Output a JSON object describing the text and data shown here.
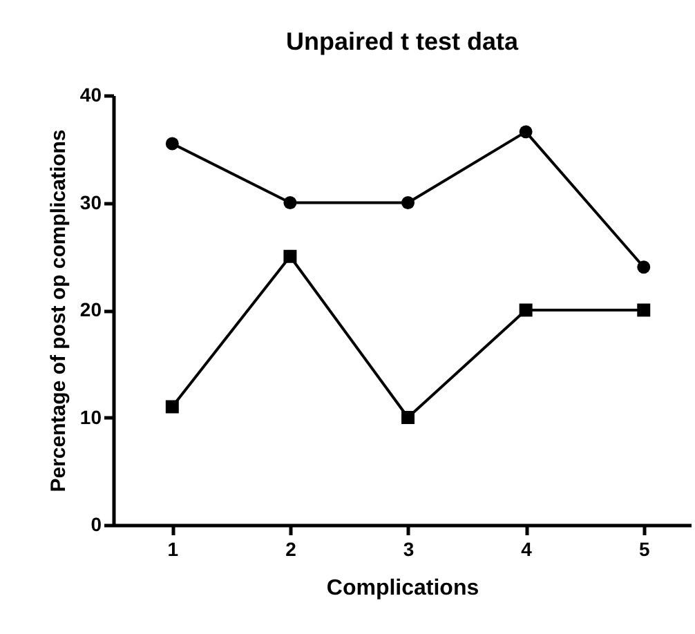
{
  "chart_data": {
    "type": "line",
    "title": "Unpaired t test data",
    "xlabel": "Complications",
    "ylabel": "Percentage of post op complications",
    "x": [
      1,
      2,
      3,
      4,
      5
    ],
    "series": [
      {
        "color": "#000000",
        "marker": "circle",
        "values": [
          35.5,
          30,
          30,
          36.6,
          24
        ]
      },
      {
        "color": "#000000",
        "marker": "square",
        "values": [
          11,
          25,
          10,
          20,
          20
        ]
      }
    ],
    "xlim": [
      0.5,
      5.4
    ],
    "xticks": [
      1,
      2,
      3,
      4,
      5
    ],
    "ylim": [
      0,
      40
    ],
    "yticks": [
      0,
      10,
      20,
      30,
      40
    ],
    "grid": false,
    "line_style": "solid"
  }
}
